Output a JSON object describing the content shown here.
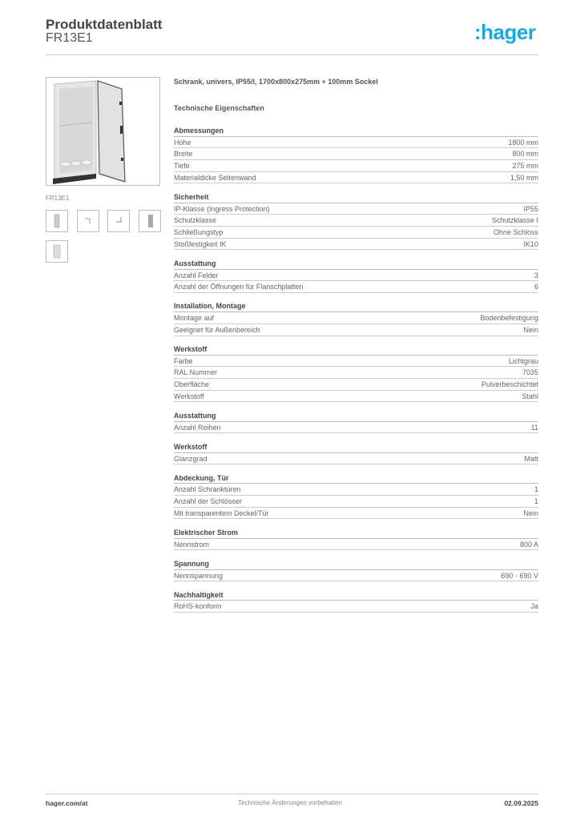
{
  "header": {
    "title": "Produktdatenblatt",
    "subtitle": "FR13E1",
    "logo": ":hager",
    "logo_color": "#17a9e1"
  },
  "gallery": {
    "caption": "FR13E1",
    "thumbnails": [
      "front-view",
      "corner-detail",
      "bracket-detail",
      "side-view",
      "door-view"
    ]
  },
  "product_name": "Schrank, univers, IP55/I, 1700x800x275mm + 100mm Sockel",
  "tech_heading": "Technische Eigenschaften",
  "sections": [
    {
      "title": "Abmessungen",
      "rows": [
        [
          "Höhe",
          "1800 mm"
        ],
        [
          "Breite",
          "800 mm"
        ],
        [
          "Tiefe",
          "275 mm"
        ],
        [
          "Materialdicke Seitenwand",
          "1,50 mm"
        ]
      ]
    },
    {
      "title": "Sicherheit",
      "rows": [
        [
          "IP-Klasse (Ingress Protection)",
          "IP55"
        ],
        [
          "Schutzklasse",
          "Schutzklasse I"
        ],
        [
          "Schließungstyp",
          "Ohne Schloss"
        ],
        [
          "Stoßfestigkeit IK",
          "IK10"
        ]
      ]
    },
    {
      "title": "Ausstattung",
      "rows": [
        [
          "Anzahl Felder",
          "3"
        ],
        [
          "Anzahl der Öffnungen für Flanschplatten",
          "6"
        ]
      ]
    },
    {
      "title": "Installation, Montage",
      "rows": [
        [
          "Montage auf",
          "Bodenbefestigung"
        ],
        [
          "Geeignet für Außenbereich",
          "Nein"
        ]
      ]
    },
    {
      "title": "Werkstoff",
      "rows": [
        [
          "Farbe",
          "Lichtgrau"
        ],
        [
          "RAL Nummer",
          "7035"
        ],
        [
          "Oberfläche",
          "Pulverbeschichtet"
        ],
        [
          "Werkstoff",
          "Stahl"
        ]
      ]
    },
    {
      "title": "Ausstattung",
      "rows": [
        [
          "Anzahl Reihen",
          "11"
        ]
      ]
    },
    {
      "title": "Werkstoff",
      "rows": [
        [
          "Glanzgrad",
          "Matt"
        ]
      ]
    },
    {
      "title": "Abdeckung, Tür",
      "rows": [
        [
          "Anzahl Schranktüren",
          "1"
        ],
        [
          "Anzahl der Schlösser",
          "1"
        ],
        [
          "Mit transparentem Deckel/Tür",
          "Nein"
        ]
      ]
    },
    {
      "title": "Elektrischer Strom",
      "rows": [
        [
          "Nennstrom",
          "800 A"
        ]
      ]
    },
    {
      "title": "Spannung",
      "rows": [
        [
          "Nennspannung",
          "690 - 690 V"
        ]
      ]
    },
    {
      "title": "Nachhaltigkeit",
      "rows": [
        [
          "RoHS-konform",
          "Ja"
        ]
      ]
    }
  ],
  "footer": {
    "website": "hager.com/at",
    "notice": "Technische Änderungen vorbehalten",
    "date": "02.09.2025"
  }
}
